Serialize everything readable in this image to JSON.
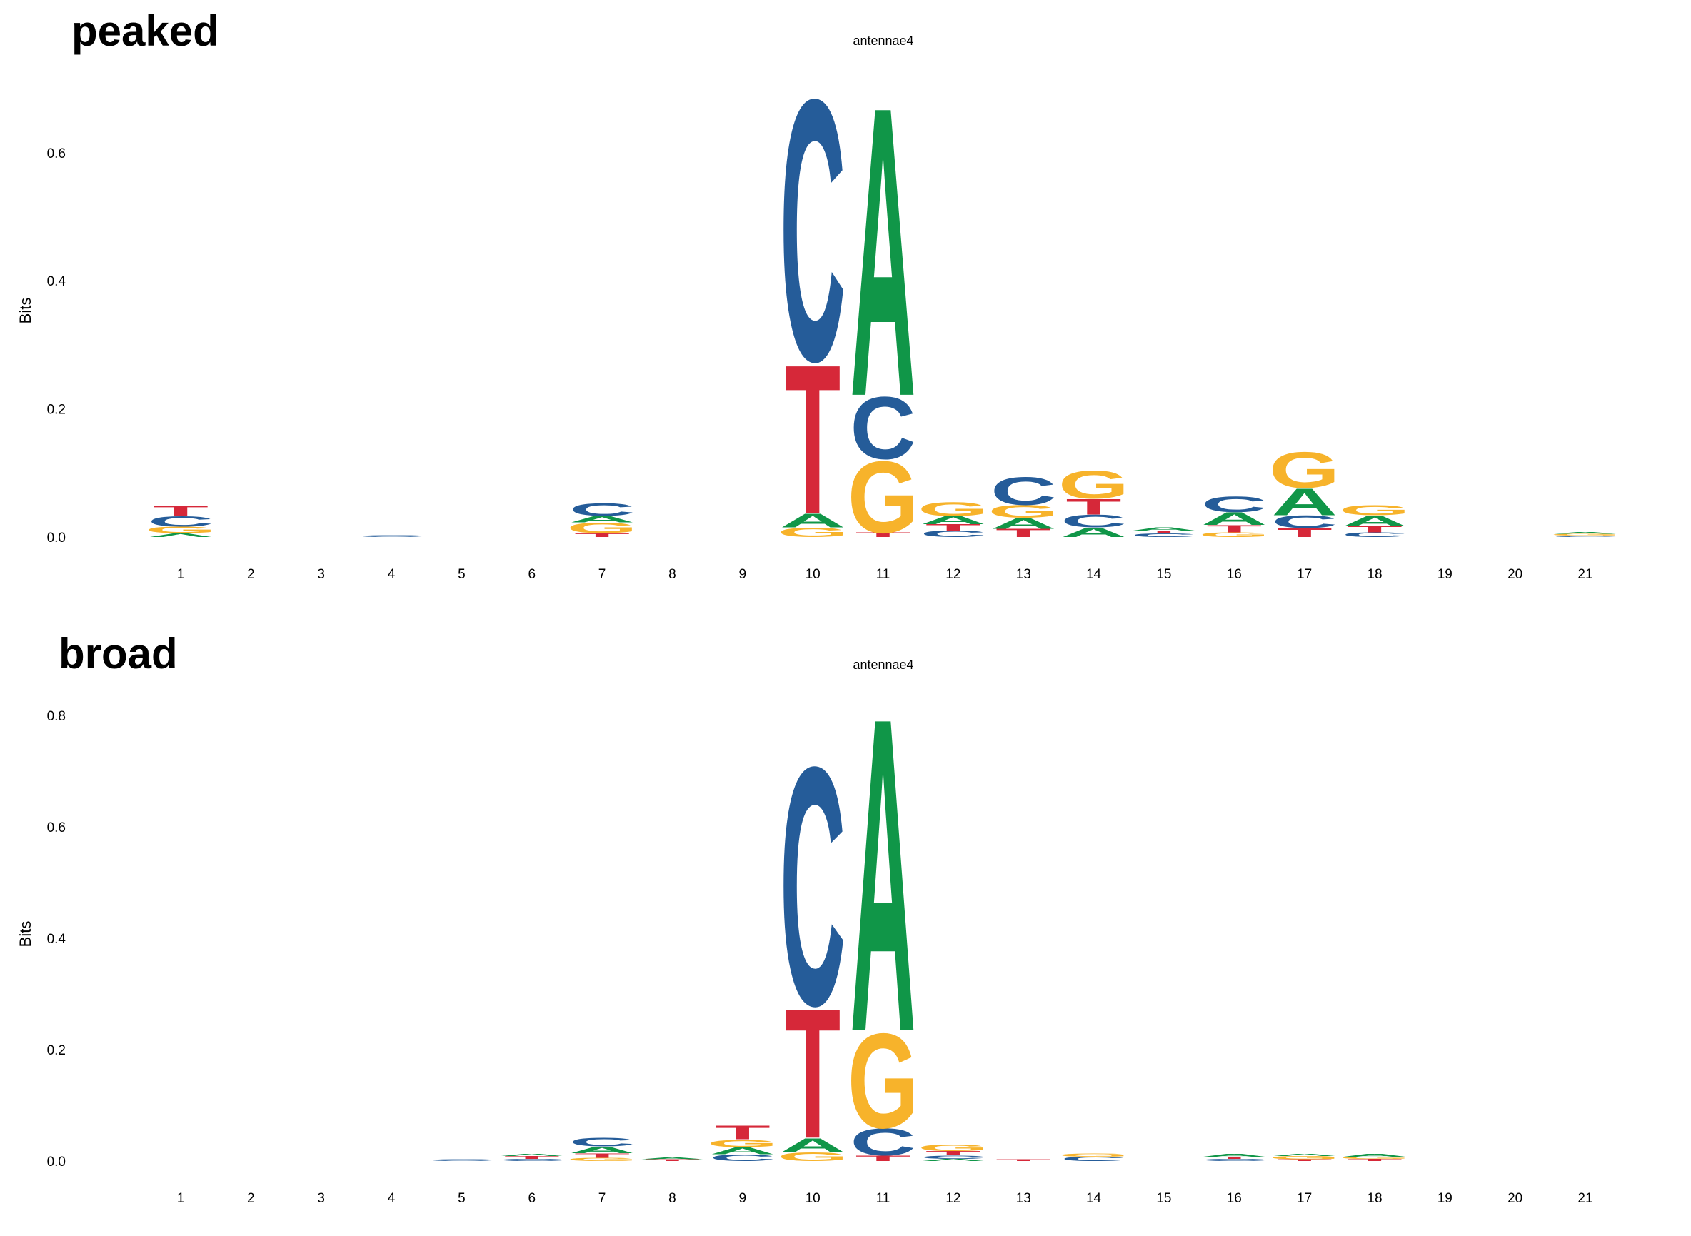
{
  "panels": [
    {
      "label": "peaked"
    },
    {
      "label": "broad"
    }
  ],
  "colors": {
    "A": "#109648",
    "C": "#255C99",
    "G": "#F7B32B",
    "T": "#D62839"
  },
  "chart_data": [
    {
      "type": "sequence-logo",
      "title": "antennae4",
      "ylabel": "Bits",
      "xlabel": "",
      "ylim": [
        0,
        0.72
      ],
      "yticks": [
        "0.0",
        "0.2",
        "0.4",
        "0.6"
      ],
      "x": [
        "1",
        "2",
        "3",
        "4",
        "5",
        "6",
        "7",
        "8",
        "9",
        "10",
        "11",
        "12",
        "13",
        "14",
        "15",
        "16",
        "17",
        "18",
        "19",
        "20",
        "21"
      ],
      "positions": [
        [
          [
            "A",
            0.006
          ],
          [
            "G",
            0.01
          ],
          [
            "C",
            0.017
          ],
          [
            "T",
            0.017
          ]
        ],
        [],
        [],
        [
          [
            "C",
            0.003
          ]
        ],
        [],
        [],
        [
          [
            "T",
            0.006
          ],
          [
            "G",
            0.017
          ],
          [
            "A",
            0.01
          ],
          [
            "C",
            0.02
          ]
        ],
        [],
        [],
        [
          [
            "G",
            0.015
          ],
          [
            "A",
            0.022
          ],
          [
            "T",
            0.24
          ],
          [
            "C",
            0.42
          ]
        ],
        [
          [
            "T",
            0.007
          ],
          [
            "G",
            0.115
          ],
          [
            "C",
            0.1
          ],
          [
            "A",
            0.465
          ]
        ],
        [
          [
            "C",
            0.01
          ],
          [
            "T",
            0.01
          ],
          [
            "A",
            0.013
          ],
          [
            "G",
            0.022
          ]
        ],
        [
          [
            "T",
            0.013
          ],
          [
            "A",
            0.017
          ],
          [
            "G",
            0.02
          ],
          [
            "C",
            0.045
          ]
        ],
        [
          [
            "A",
            0.015
          ],
          [
            "C",
            0.02
          ],
          [
            "T",
            0.025
          ],
          [
            "G",
            0.045
          ]
        ],
        [
          [
            "C",
            0.006
          ],
          [
            "T",
            0.004
          ],
          [
            "A",
            0.005
          ]
        ],
        [
          [
            "G",
            0.007
          ],
          [
            "T",
            0.012
          ],
          [
            "A",
            0.02
          ],
          [
            "C",
            0.025
          ]
        ],
        [
          [
            "T",
            0.014
          ],
          [
            "C",
            0.02
          ],
          [
            "A",
            0.043
          ],
          [
            "G",
            0.057
          ]
        ],
        [
          [
            "C",
            0.007
          ],
          [
            "T",
            0.01
          ],
          [
            "A",
            0.017
          ],
          [
            "G",
            0.016
          ]
        ],
        [],
        [],
        [
          [
            "C",
            0.002
          ],
          [
            "G",
            0.003
          ],
          [
            "A",
            0.003
          ]
        ]
      ]
    },
    {
      "type": "sequence-logo",
      "title": "antennae4",
      "ylabel": "Bits",
      "xlabel": "",
      "ylim": [
        0,
        0.82
      ],
      "yticks": [
        "0.0",
        "0.2",
        "0.4",
        "0.6",
        "0.8"
      ],
      "x": [
        "1",
        "2",
        "3",
        "4",
        "5",
        "6",
        "7",
        "8",
        "9",
        "10",
        "11",
        "12",
        "13",
        "14",
        "15",
        "16",
        "17",
        "18",
        "19",
        "20",
        "21"
      ],
      "positions": [
        [],
        [],
        [],
        [],
        [
          [
            "C",
            0.003
          ]
        ],
        [
          [
            "C",
            0.004
          ],
          [
            "T",
            0.005
          ],
          [
            "A",
            0.004
          ]
        ],
        [
          [
            "G",
            0.006
          ],
          [
            "T",
            0.008
          ],
          [
            "A",
            0.012
          ],
          [
            "C",
            0.016
          ]
        ],
        [
          [
            "T",
            0.003
          ],
          [
            "A",
            0.003
          ]
        ],
        [
          [
            "C",
            0.012
          ],
          [
            "A",
            0.013
          ],
          [
            "G",
            0.014
          ],
          [
            "T",
            0.026
          ]
        ],
        [
          [
            "G",
            0.016
          ],
          [
            "A",
            0.026
          ],
          [
            "T",
            0.24
          ],
          [
            "C",
            0.44
          ]
        ],
        [
          [
            "T",
            0.01
          ],
          [
            "C",
            0.05
          ],
          [
            "G",
            0.175
          ],
          [
            "A",
            0.58
          ]
        ],
        [
          [
            "A",
            0.004
          ],
          [
            "C",
            0.006
          ],
          [
            "T",
            0.008
          ],
          [
            "G",
            0.012
          ]
        ],
        [
          [
            "T",
            0.003
          ]
        ],
        [
          [
            "C",
            0.008
          ],
          [
            "G",
            0.006
          ]
        ],
        [],
        [
          [
            "C",
            0.004
          ],
          [
            "T",
            0.004
          ],
          [
            "A",
            0.005
          ]
        ],
        [
          [
            "T",
            0.003
          ],
          [
            "G",
            0.006
          ],
          [
            "A",
            0.004
          ]
        ],
        [
          [
            "T",
            0.004
          ],
          [
            "G",
            0.004
          ],
          [
            "A",
            0.005
          ]
        ],
        [],
        [],
        []
      ]
    }
  ]
}
